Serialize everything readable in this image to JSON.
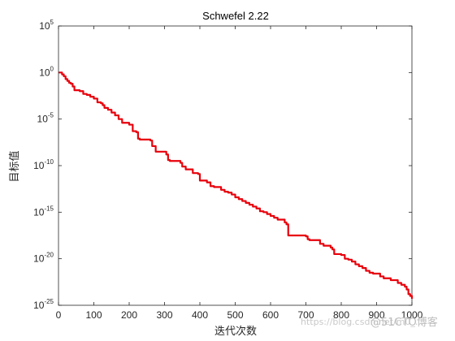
{
  "chart_data": {
    "type": "line",
    "title": "Schwefel 2.22",
    "xlabel": "迭代次数",
    "ylabel": "目标值",
    "xlim": [
      0,
      1000
    ],
    "ylim_log10": [
      -25,
      5
    ],
    "y_scale": "log",
    "x_ticks": [
      "0",
      "100",
      "200",
      "300",
      "400",
      "500",
      "600",
      "700",
      "800",
      "900",
      "1000"
    ],
    "y_ticks": [
      {
        "base": "10",
        "exp": "5"
      },
      {
        "base": "10",
        "exp": "0"
      },
      {
        "base": "10",
        "exp": "-5"
      },
      {
        "base": "10",
        "exp": "-10"
      },
      {
        "base": "10",
        "exp": "-15"
      },
      {
        "base": "10",
        "exp": "-20"
      },
      {
        "base": "10",
        "exp": "-25"
      }
    ],
    "grid": false,
    "series": [
      {
        "color": "#e8000b",
        "x": [
          1,
          10,
          15,
          20,
          25,
          30,
          35,
          40,
          45,
          60,
          70,
          80,
          90,
          100,
          110,
          120,
          125,
          130,
          140,
          150,
          160,
          170,
          180,
          200,
          210,
          220,
          225,
          230,
          260,
          265,
          275,
          305,
          310,
          315,
          345,
          350,
          360,
          380,
          395,
          400,
          420,
          430,
          440,
          460,
          470,
          480,
          490,
          500,
          510,
          520,
          530,
          540,
          550,
          560,
          570,
          580,
          590,
          600,
          610,
          620,
          640,
          645,
          650,
          700,
          705,
          710,
          740,
          750,
          770,
          775,
          780,
          800,
          810,
          820,
          830,
          840,
          850,
          860,
          870,
          880,
          890,
          910,
          920,
          940,
          960,
          970,
          980,
          985,
          990,
          995,
          1000
        ],
        "y_log10": [
          0.0,
          -0.2,
          -0.4,
          -0.7,
          -0.9,
          -1.1,
          -1.2,
          -1.5,
          -1.9,
          -2.0,
          -2.3,
          -2.4,
          -2.6,
          -2.8,
          -3.2,
          -3.3,
          -3.5,
          -3.8,
          -4.0,
          -4.3,
          -4.6,
          -5.0,
          -5.4,
          -5.6,
          -6.3,
          -6.4,
          -7.1,
          -7.2,
          -7.3,
          -7.9,
          -8.5,
          -8.8,
          -9.4,
          -9.5,
          -9.7,
          -10.1,
          -10.4,
          -10.8,
          -10.9,
          -11.6,
          -11.8,
          -12.2,
          -12.3,
          -12.6,
          -12.8,
          -12.9,
          -13.1,
          -13.4,
          -13.6,
          -13.8,
          -14.0,
          -14.2,
          -14.4,
          -14.6,
          -14.9,
          -15.0,
          -15.2,
          -15.4,
          -15.6,
          -15.8,
          -16.1,
          -16.3,
          -17.5,
          -17.6,
          -17.9,
          -18.0,
          -18.4,
          -18.6,
          -18.8,
          -19.0,
          -19.5,
          -19.6,
          -20.0,
          -20.1,
          -20.3,
          -20.6,
          -20.8,
          -21.0,
          -21.3,
          -21.5,
          -21.6,
          -21.9,
          -22.1,
          -22.3,
          -22.6,
          -22.8,
          -23.0,
          -23.3,
          -23.8,
          -24.0,
          -24.3
        ]
      }
    ]
  },
  "watermark": {
    "url_text": "https://blog.csdn.net/m0_...",
    "brand_text": "@51CTO博客"
  }
}
